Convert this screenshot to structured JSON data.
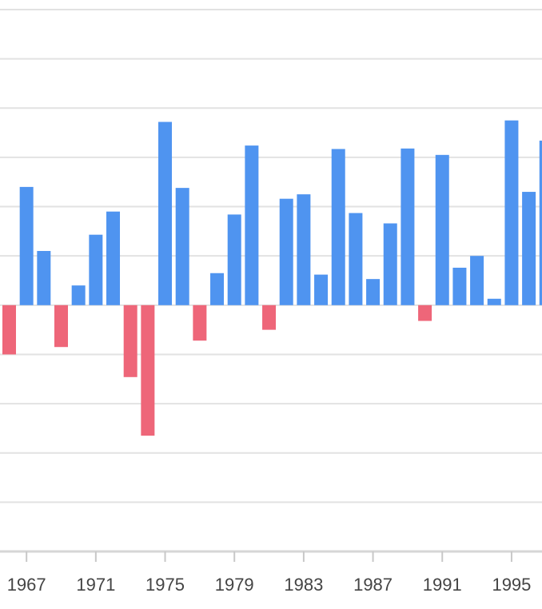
{
  "chart_data": {
    "type": "bar",
    "categories": [
      "1966",
      "1967",
      "1968",
      "1969",
      "1970",
      "1971",
      "1972",
      "1973",
      "1974",
      "1975",
      "1976",
      "1977",
      "1978",
      "1979",
      "1980",
      "1981",
      "1982",
      "1983",
      "1984",
      "1985",
      "1986",
      "1987",
      "1988",
      "1989",
      "1990",
      "1991",
      "1992",
      "1993",
      "1994",
      "1995",
      "1996",
      "1997"
    ],
    "values": [
      -10,
      24,
      11,
      -8.5,
      4,
      14.3,
      19,
      -14.6,
      -26.5,
      37.2,
      23.8,
      -7.2,
      6.5,
      18.4,
      32.4,
      -5,
      21.6,
      22.5,
      6.2,
      31.7,
      18.7,
      5.3,
      16.6,
      31.8,
      -3.2,
      30.5,
      7.6,
      10,
      1.3,
      37.5,
      23,
      33.4
    ],
    "ylim": [
      -50,
      60
    ],
    "y_grid_step": 10,
    "x_tick_labels": [
      "1967",
      "1971",
      "1975",
      "1979",
      "1983",
      "1987",
      "1991",
      "1995"
    ],
    "grid": true,
    "colors": {
      "positive": "#4f94f0",
      "negative": "#ee6679"
    }
  }
}
